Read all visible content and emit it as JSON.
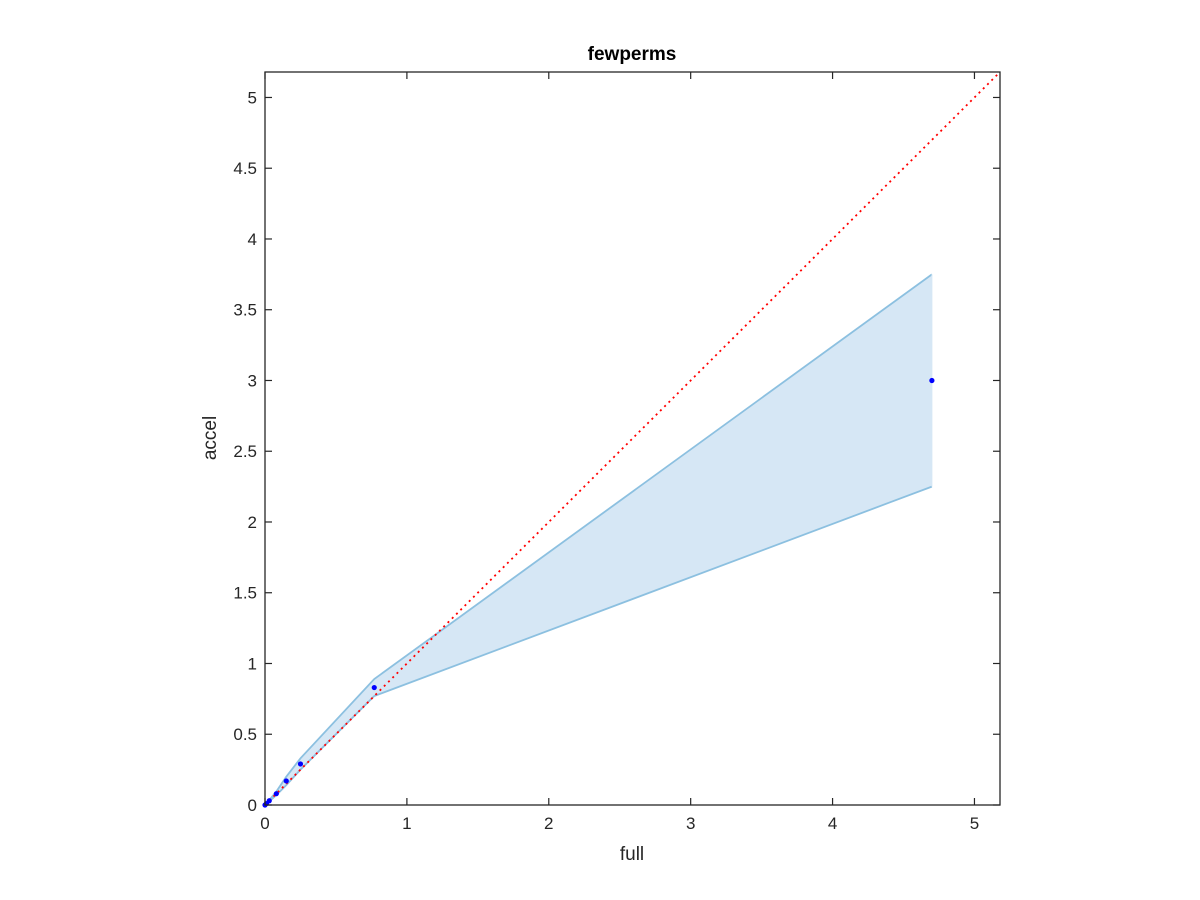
{
  "chart_data": {
    "type": "scatter",
    "title": "fewperms",
    "xlabel": "full",
    "ylabel": "accel",
    "xlim": [
      0,
      5.18
    ],
    "ylim": [
      0,
      5.18
    ],
    "xticks": [
      0,
      1,
      2,
      3,
      4,
      5
    ],
    "xtick_labels": [
      "0",
      "1",
      "2",
      "3",
      "4",
      "5"
    ],
    "yticks": [
      0,
      0.5,
      1,
      1.5,
      2,
      2.5,
      3,
      3.5,
      4,
      4.5,
      5
    ],
    "ytick_labels": [
      "0",
      "0.5",
      "1",
      "1.5",
      "2",
      "2.5",
      "3",
      "3.5",
      "4",
      "4.5",
      "5"
    ],
    "grid": false,
    "points": {
      "x": [
        0,
        0.01,
        0.03,
        0.08,
        0.15,
        0.25,
        0.77,
        4.7
      ],
      "y": [
        0,
        0.01,
        0.03,
        0.08,
        0.17,
        0.29,
        0.83,
        3.0
      ],
      "color": "#0000ff"
    },
    "band": {
      "x": [
        0,
        0.01,
        0.03,
        0.08,
        0.15,
        0.25,
        0.77,
        4.7
      ],
      "upper": [
        0,
        0.012,
        0.035,
        0.095,
        0.2,
        0.33,
        0.89,
        3.75
      ],
      "lower": [
        0,
        0.008,
        0.025,
        0.07,
        0.14,
        0.25,
        0.77,
        2.25
      ],
      "fill_color": "#d6e7f5",
      "edge_color": "#8cc0e0"
    },
    "reference_line": {
      "x": [
        0,
        5.18
      ],
      "y": [
        0,
        5.18
      ],
      "color": "#ff0000",
      "style": "dotted"
    }
  }
}
